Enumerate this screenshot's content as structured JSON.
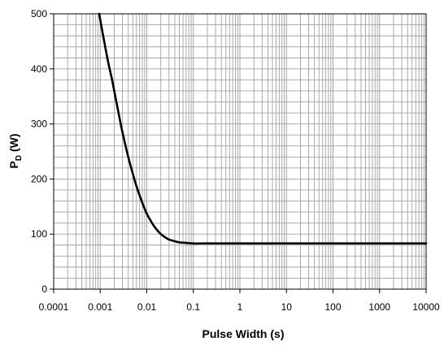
{
  "chart_data": {
    "type": "line",
    "title": "",
    "xlabel": "Pulse Width (s)",
    "ylabel": "P",
    "ylabel_subscript": "D",
    "ylabel_unit": " (W)",
    "x_scale": "log",
    "xlim": [
      0.0001,
      10000
    ],
    "ylim": [
      0,
      500
    ],
    "x_ticks": [
      0.0001,
      0.001,
      0.01,
      0.1,
      1,
      10,
      100,
      1000,
      10000
    ],
    "x_tick_labels": [
      "0.0001",
      "0.001",
      "0.01",
      "0.1",
      "1",
      "10",
      "100",
      "1000",
      "10000"
    ],
    "y_ticks": [
      0,
      100,
      200,
      300,
      400,
      500
    ],
    "y_tick_labels": [
      "0",
      "100",
      "200",
      "300",
      "400",
      "500"
    ],
    "grid": true,
    "grid_color": "#a0a0a0",
    "line_color": "#000000",
    "series": [
      {
        "x": [
          0.00095,
          0.0011,
          0.0013,
          0.0015,
          0.0018,
          0.002,
          0.0025,
          0.003,
          0.004,
          0.005,
          0.006,
          0.008,
          0.01,
          0.013,
          0.016,
          0.02,
          0.025,
          0.03,
          0.04,
          0.05,
          0.07,
          0.1,
          0.15,
          0.2,
          0.3,
          0.5,
          1,
          10,
          100,
          1000,
          10000
        ],
        "y": [
          500,
          470,
          437,
          410,
          380,
          360,
          318,
          285,
          240,
          210,
          187,
          157,
          137,
          120,
          109,
          100,
          94,
          90,
          87,
          85,
          84,
          83,
          83,
          83,
          83,
          83,
          83,
          83,
          83,
          83,
          83
        ]
      }
    ]
  }
}
